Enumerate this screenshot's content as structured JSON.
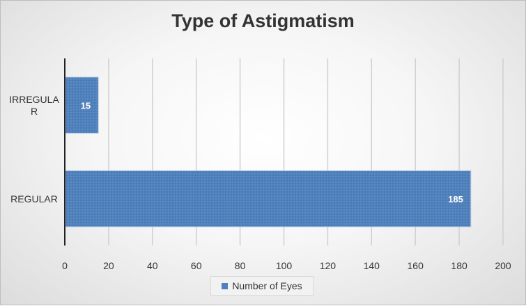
{
  "chart_data": {
    "type": "bar",
    "orientation": "horizontal",
    "title": "Type of Astigmatism",
    "categories": [
      "IRREGULAR",
      "REGULAR"
    ],
    "category_label_lines": [
      [
        "IRREGULA",
        "R"
      ],
      [
        "REGULAR"
      ]
    ],
    "series": [
      {
        "name": "Number of Eyes",
        "values": [
          15,
          185
        ],
        "color": "#4f81bd"
      }
    ],
    "data_labels": [
      "15",
      "185"
    ],
    "xlim": [
      0,
      200
    ],
    "x_ticks": [
      0,
      20,
      40,
      60,
      80,
      100,
      120,
      140,
      160,
      180,
      200
    ],
    "grid": true,
    "legend_position": "bottom"
  }
}
